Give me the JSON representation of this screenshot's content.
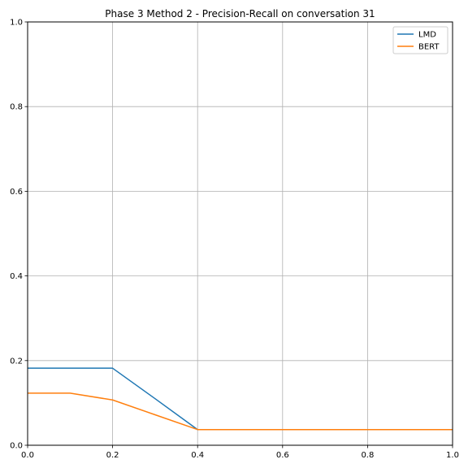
{
  "chart_data": {
    "type": "line",
    "title": "Phase 3 Method 2 - Precision-Recall on conversation 31",
    "xlabel": "",
    "ylabel": "",
    "xlim": [
      0.0,
      1.0
    ],
    "ylim": [
      0.0,
      1.0
    ],
    "xticks": [
      "0.0",
      "0.2",
      "0.4",
      "0.6",
      "0.8",
      "1.0"
    ],
    "yticks": [
      "0.0",
      "0.2",
      "0.4",
      "0.6",
      "0.8",
      "1.0"
    ],
    "grid": true,
    "legend_position": "top-right",
    "series": [
      {
        "name": "LMD",
        "color": "#1f77b4",
        "x": [
          0.0,
          0.1,
          0.2,
          0.3,
          0.4,
          0.5,
          0.6,
          0.7,
          0.8,
          0.9,
          1.0
        ],
        "y": [
          0.182,
          0.182,
          0.182,
          0.11,
          0.037,
          0.037,
          0.037,
          0.037,
          0.037,
          0.037,
          0.037
        ]
      },
      {
        "name": "BERT",
        "color": "#ff7f0e",
        "x": [
          0.0,
          0.1,
          0.2,
          0.3,
          0.4,
          0.5,
          0.6,
          0.7,
          0.8,
          0.9,
          1.0
        ],
        "y": [
          0.123,
          0.123,
          0.107,
          0.072,
          0.037,
          0.037,
          0.037,
          0.037,
          0.037,
          0.037,
          0.037
        ]
      }
    ]
  }
}
